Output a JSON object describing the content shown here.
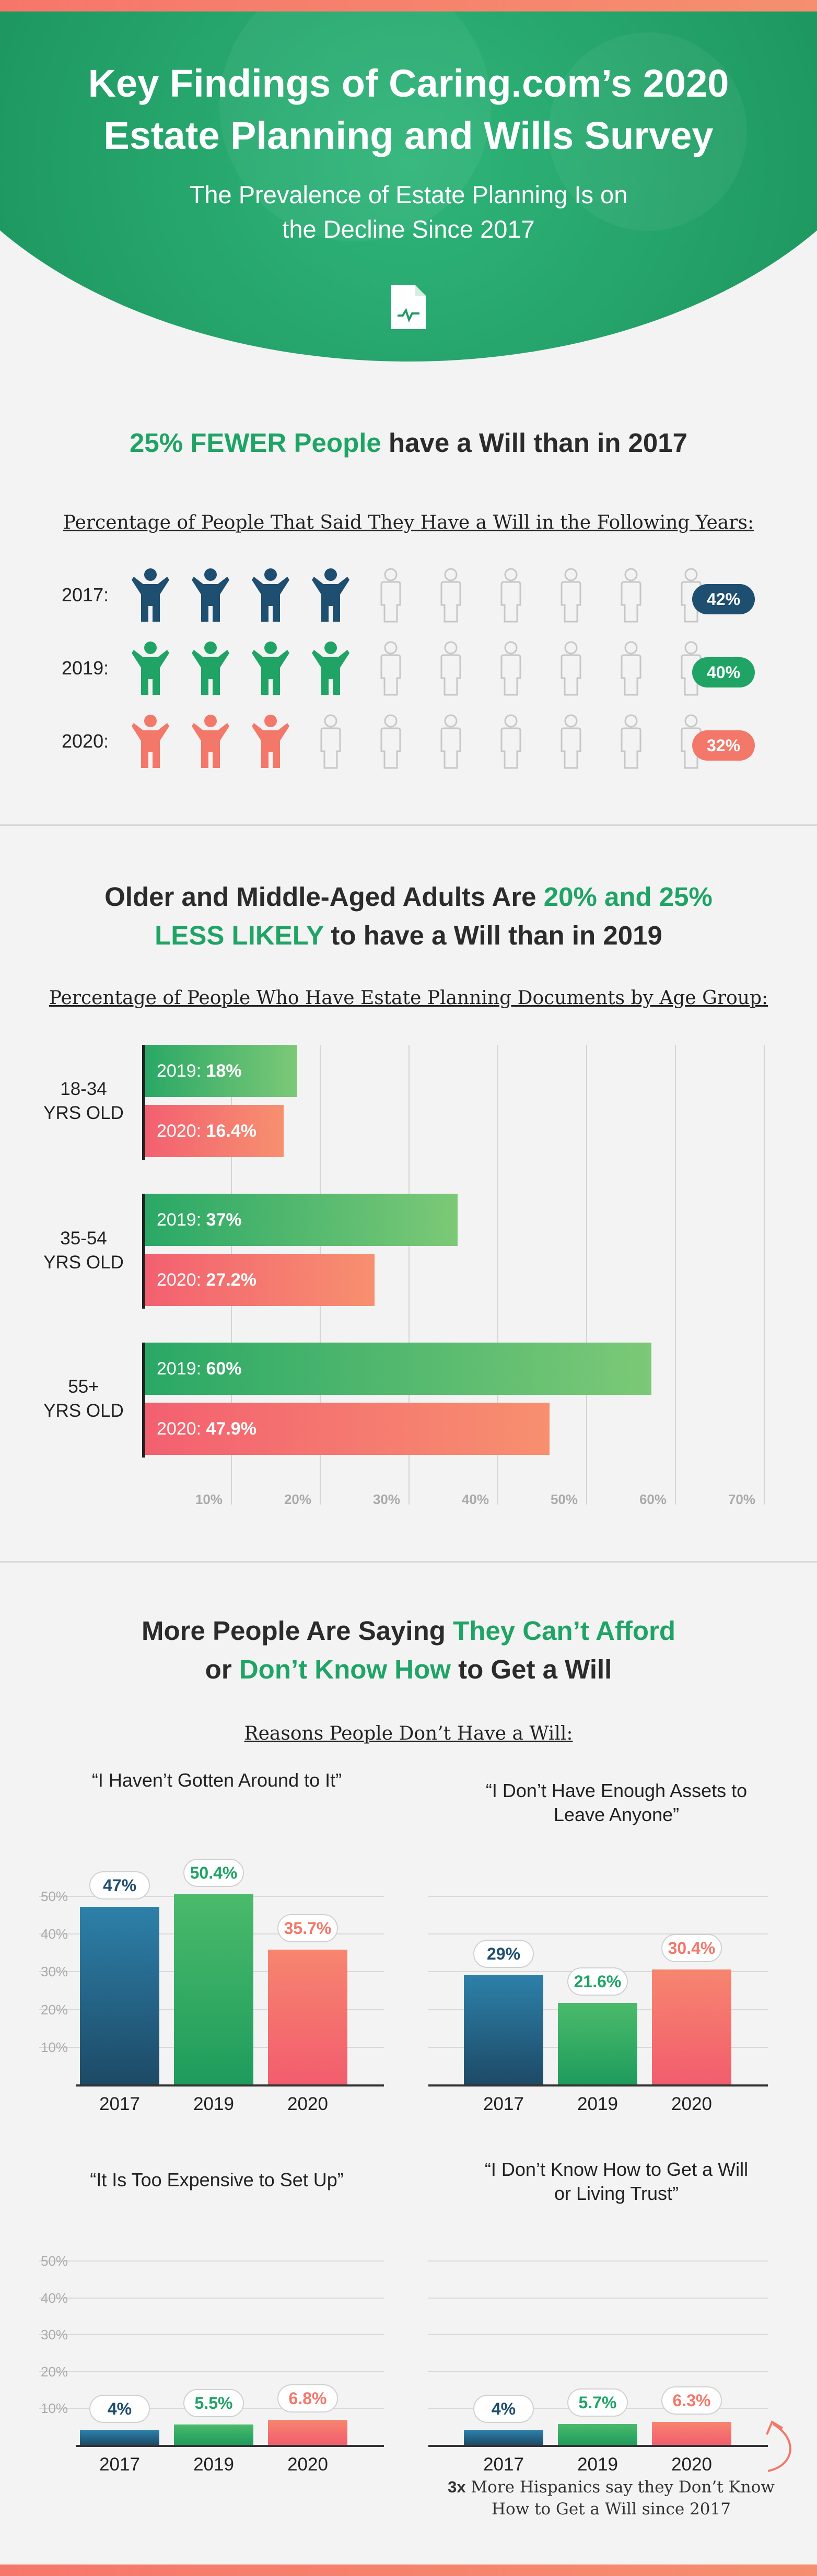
{
  "header": {
    "title_line1": "Key Findings of Caring.com’s 2020",
    "title_line2": "Estate Planning and Wills Survey",
    "subtitle_line1": "The Prevalence of Estate Planning Is on",
    "subtitle_line2": "the Decline Since 2017",
    "icon": "document-icon"
  },
  "section1": {
    "headline_highlight": "25% FEWER People",
    "headline_rest": " have a Will than in 2017",
    "chart_subtitle": "Percentage of People That Said They Have a Will in the Following Years:",
    "rows": [
      {
        "year": "2017:",
        "label": "42%",
        "filled": 4,
        "total": 10,
        "color": "#1e4e70"
      },
      {
        "year": "2019:",
        "label": "40%",
        "filled": 4,
        "total": 10,
        "color": "#1fa465"
      },
      {
        "year": "2020:",
        "label": "32%",
        "filled": 3,
        "total": 10,
        "color": "#f3786a"
      }
    ]
  },
  "section2": {
    "headline_part1": "Older and Middle-Aged Adults Are ",
    "headline_highlight1": "20% and 25%",
    "headline_highlight2": "LESS LIKELY",
    "headline_part2": " to have a Will than in 2019",
    "chart_subtitle": "Percentage of People Who Have Estate Planning Documents by Age Group:"
  },
  "section3": {
    "headline_part1": "More People Are Saying ",
    "headline_highlight1": "They Can’t Afford",
    "headline_part2": "or ",
    "headline_highlight2": "Don’t Know How",
    "headline_part3": " to Get a Will",
    "chart_subtitle": "Reasons People Don’t Have a Will:",
    "note_bold": "3x",
    "note_rest": " More Hispanics say they Don’t Know How to Get a Will since 2017"
  },
  "chart_data": [
    {
      "type": "bar",
      "orientation": "horizontal",
      "categories": [
        "18-34 YRS OLD",
        "35-54 YRS OLD",
        "55+ YRS OLD"
      ],
      "series": [
        {
          "name": "2019",
          "values": [
            18,
            37,
            60
          ],
          "labels": [
            "18%",
            "37%",
            "60%"
          ]
        },
        {
          "name": "2020",
          "values": [
            16.4,
            27.2,
            47.9
          ],
          "labels": [
            "16.4%",
            "27.2%",
            "47.9%"
          ]
        }
      ],
      "xticks": [
        "10%",
        "20%",
        "30%",
        "40%",
        "50%",
        "60%",
        "70%"
      ],
      "xlim": [
        0,
        70
      ]
    },
    {
      "type": "bar",
      "title": "“I Haven’t Gotten Around to It”",
      "categories": [
        "2017",
        "2019",
        "2020"
      ],
      "values": [
        47,
        50.4,
        35.7
      ],
      "labels": [
        "47%",
        "50.4%",
        "35.7%"
      ],
      "yticks": [
        "50%",
        "40%",
        "30%",
        "20%",
        "10%"
      ],
      "ylim": [
        0,
        50
      ]
    },
    {
      "type": "bar",
      "title": "“I Don’t Have Enough Assets to Leave Anyone”",
      "categories": [
        "2017",
        "2019",
        "2020"
      ],
      "values": [
        29,
        21.6,
        30.4
      ],
      "labels": [
        "29%",
        "21.6%",
        "30.4%"
      ],
      "ylim": [
        0,
        50
      ]
    },
    {
      "type": "bar",
      "title": "“It Is Too Expensive to Set Up”",
      "categories": [
        "2017",
        "2019",
        "2020"
      ],
      "values": [
        4,
        5.5,
        6.8
      ],
      "labels": [
        "4%",
        "5.5%",
        "6.8%"
      ],
      "yticks": [
        "50%",
        "40%",
        "30%",
        "20%",
        "10%"
      ],
      "ylim": [
        0,
        50
      ]
    },
    {
      "type": "bar",
      "title": "“I Don’t Know How to Get a Will or Living Trust”",
      "categories": [
        "2017",
        "2019",
        "2020"
      ],
      "values": [
        4,
        5.7,
        6.3
      ],
      "labels": [
        "4%",
        "5.7%",
        "6.3%"
      ],
      "ylim": [
        0,
        50
      ]
    }
  ],
  "colors": {
    "green": "#1fa465",
    "navy": "#1e4e70",
    "coral": "#f3786a"
  }
}
